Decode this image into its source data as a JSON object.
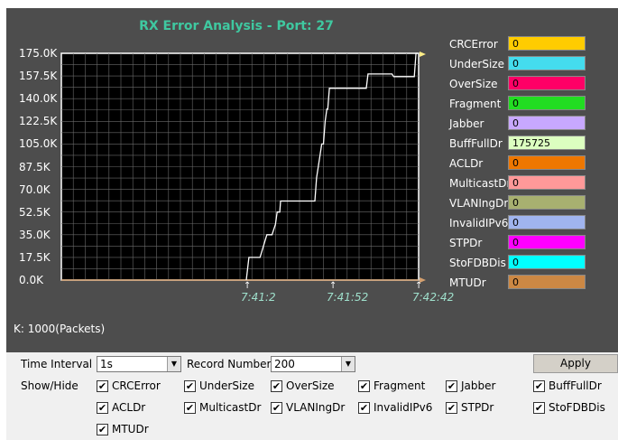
{
  "chart": {
    "title": "RX Error Analysis - Port: 27",
    "units_label": "K: 1000(Packets)"
  },
  "legend": [
    {
      "name": "CRCError",
      "value": "0",
      "color": "#ffcc00"
    },
    {
      "name": "UnderSize",
      "value": "0",
      "color": "#44dcee"
    },
    {
      "name": "OverSize",
      "value": "0",
      "color": "#ff0066"
    },
    {
      "name": "Fragment",
      "value": "0",
      "color": "#22dd22"
    },
    {
      "name": "Jabber",
      "value": "0",
      "color": "#c8a8ff"
    },
    {
      "name": "BuffFullDr",
      "value": "175725",
      "color": "#dcffc0"
    },
    {
      "name": "ACLDr",
      "value": "0",
      "color": "#ee7700"
    },
    {
      "name": "MulticastDr",
      "value": "0",
      "color": "#ff9999"
    },
    {
      "name": "VLANIngDr",
      "value": "0",
      "color": "#a8b070"
    },
    {
      "name": "InvalidIPv6",
      "value": "0",
      "color": "#a0b4ee"
    },
    {
      "name": "STPDr",
      "value": "0",
      "color": "#ff00ff"
    },
    {
      "name": "StoFDBDis",
      "value": "0",
      "color": "#00ffff"
    },
    {
      "name": "MTUDr",
      "value": "0",
      "color": "#cc8844"
    }
  ],
  "chart_data": {
    "type": "line",
    "title": "RX Error Analysis - Port: 27",
    "ylabel": "K: 1000(Packets)",
    "ylim": [
      0,
      175
    ],
    "yticks": [
      "175.0K",
      "157.5K",
      "140.0K",
      "122.5K",
      "105.0K",
      "87.5K",
      "70.0K",
      "52.5K",
      "35.0K",
      "17.5K",
      "0.0K"
    ],
    "xticks": [
      "7:41:2",
      "7:41:52",
      "7:42:42"
    ],
    "x_range_seconds": [
      0,
      100
    ],
    "grid": true,
    "legend_position": "right",
    "series": [
      {
        "name": "BuffFullDr",
        "color": "#ffffff",
        "points": [
          [
            0,
            0
          ],
          [
            1.5,
            17.5
          ],
          [
            8,
            17.5
          ],
          [
            12,
            35
          ],
          [
            15,
            35
          ],
          [
            17,
            43
          ],
          [
            18,
            52.5
          ],
          [
            19.5,
            52.5
          ],
          [
            20,
            61
          ],
          [
            22,
            61
          ],
          [
            23,
            61
          ],
          [
            33,
            61
          ],
          [
            38,
            61
          ],
          [
            40,
            61
          ],
          [
            41,
            79
          ],
          [
            42,
            87.5
          ],
          [
            44,
            105
          ],
          [
            45,
            105
          ],
          [
            46,
            122.5
          ],
          [
            47,
            132
          ],
          [
            47.5,
            132
          ],
          [
            48.5,
            148
          ],
          [
            55,
            148
          ],
          [
            70,
            148
          ],
          [
            71,
            159
          ],
          [
            73,
            159
          ],
          [
            85,
            159
          ],
          [
            86,
            157
          ],
          [
            98,
            157
          ],
          [
            99,
            175
          ],
          [
            100,
            175
          ]
        ]
      }
    ]
  },
  "controls": {
    "time_interval_label": "Time Interval",
    "time_interval_value": "1s",
    "record_number_label": "Record Number",
    "record_number_value": "200",
    "apply_label": "Apply",
    "show_hide_label": "Show/Hide",
    "checkboxes": [
      {
        "label": "CRCError",
        "checked": true
      },
      {
        "label": "UnderSize",
        "checked": true
      },
      {
        "label": "OverSize",
        "checked": true
      },
      {
        "label": "Fragment",
        "checked": true
      },
      {
        "label": "Jabber",
        "checked": true
      },
      {
        "label": "BuffFullDr",
        "checked": true
      },
      {
        "label": "ACLDr",
        "checked": true
      },
      {
        "label": "MulticastDr",
        "checked": true
      },
      {
        "label": "VLANIngDr",
        "checked": true
      },
      {
        "label": "InvalidIPv6",
        "checked": true
      },
      {
        "label": "STPDr",
        "checked": true
      },
      {
        "label": "StoFDBDis",
        "checked": true
      },
      {
        "label": "MTUDr",
        "checked": true
      }
    ]
  }
}
